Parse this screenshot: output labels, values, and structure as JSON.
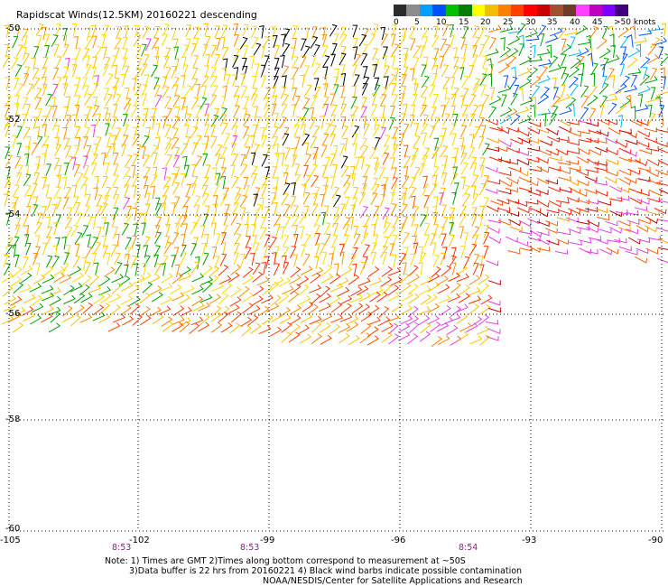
{
  "title": "Rapidscat Winds(12.5KM) 20160221 descending",
  "colorbar": {
    "labels": [
      "0",
      "5",
      "10",
      "15",
      "20",
      "25",
      "30",
      "35",
      "40",
      "45",
      ">50 knots"
    ],
    "colors": [
      "#2b2b2b",
      "#8c8c8c",
      "#00a0ff",
      "#0050ff",
      "#00c000",
      "#008000",
      "#ffff00",
      "#f0c000",
      "#ff8000",
      "#ff4000",
      "#ff0000",
      "#c80000",
      "#a05030",
      "#6e3c28",
      "#ff40ff",
      "#c000c0",
      "#8000ff",
      "#400080"
    ]
  },
  "axes": {
    "lat_labels": [
      "-50",
      "-52",
      "-54",
      "-56",
      "-58",
      "-60"
    ],
    "lon_labels": [
      "-105",
      "-102",
      "-99",
      "-96",
      "-93",
      "-90"
    ],
    "time_labels": [
      "8:53",
      "8:53",
      "8:54"
    ]
  },
  "notes": {
    "line1": "Note: 1) Times are GMT 2)Times along bottom correspond to measurement at ~50S",
    "line2": "3)Data buffer is 22 hrs from 20160221 4) Black wind barbs indicate possible contamination",
    "line3": "NOAA/NESDIS/Center for Satellite Applications and Research"
  }
}
